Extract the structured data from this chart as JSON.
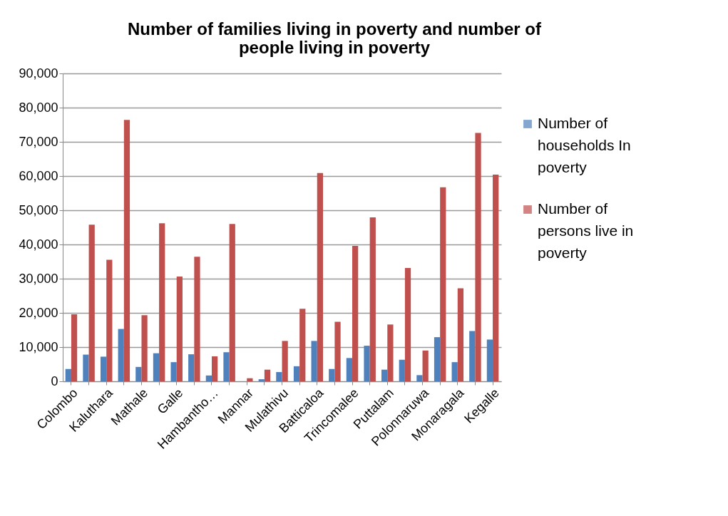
{
  "chart_data": {
    "type": "bar",
    "title": "Number of families living in poverty and number of people living in poverty",
    "categories": [
      "Colombo",
      null,
      "Kaluthara",
      null,
      "Mathale",
      null,
      "Galle",
      null,
      "Hambantho…",
      null,
      "Mannar",
      null,
      "Mulathivu",
      null,
      "Batticaloa",
      null,
      "Trincomalee",
      null,
      "Puttalam",
      null,
      "Polonnaruwa",
      null,
      "Monaragala",
      null,
      "Kegalle"
    ],
    "series": [
      {
        "name": "Number of households In poverty",
        "color": "#4f81bd",
        "values": [
          3600,
          7800,
          7200,
          15300,
          4200,
          8200,
          5600,
          7900,
          1700,
          8500,
          null,
          600,
          2700,
          4400,
          11800,
          3600,
          6800,
          10400,
          3400,
          6300,
          1800,
          12900,
          5600,
          14700,
          12200
        ]
      },
      {
        "name": "Number of persons live in poverty",
        "color": "#c0504d",
        "values": [
          19600,
          45800,
          35500,
          76400,
          19300,
          46200,
          30600,
          36400,
          7300,
          46000,
          900,
          3400,
          11800,
          21200,
          60900,
          17400,
          39600,
          47900,
          16600,
          33100,
          9000,
          56700,
          27200,
          72600,
          60400
        ]
      }
    ],
    "ylim": [
      0,
      90000
    ],
    "yticks": [
      0,
      {
        "value": 10000,
        "label": "10,000"
      },
      {
        "value": 20000,
        "label": "20,000"
      },
      {
        "value": 30000,
        "label": "30,000"
      },
      {
        "value": 40000,
        "label": "40,000"
      },
      {
        "value": 50000,
        "label": "50,000"
      },
      {
        "value": 60000,
        "label": "60,000"
      },
      {
        "value": 70000,
        "label": "70,000"
      },
      {
        "value": 80000,
        "label": "80,000"
      },
      {
        "value": 90000,
        "label": "90,000"
      }
    ],
    "grid": "y",
    "legend": "right"
  }
}
